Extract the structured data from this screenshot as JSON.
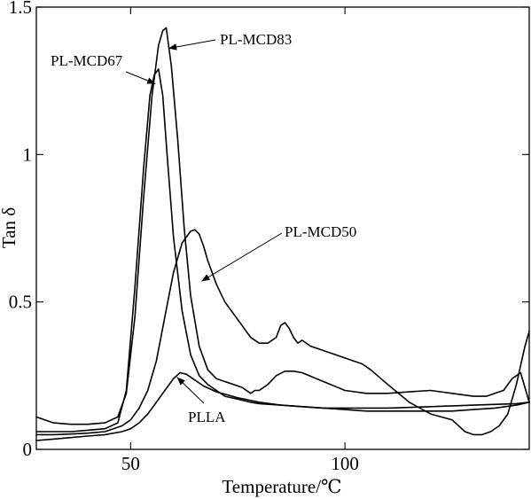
{
  "chart_data": {
    "type": "line",
    "title": "",
    "xlabel": "Temperature/℃",
    "ylabel": "Tan δ",
    "xlim": [
      28,
      143
    ],
    "ylim": [
      0,
      1.5
    ],
    "grid": false,
    "x_ticks": [
      {
        "value": 50,
        "label": "50"
      },
      {
        "value": 100,
        "label": "100"
      }
    ],
    "y_ticks": [
      {
        "value": 0,
        "label": "0"
      },
      {
        "value": 0.5,
        "label": "0.5"
      },
      {
        "value": 1,
        "label": "1"
      },
      {
        "value": 1.5,
        "label": "1.5"
      }
    ],
    "series": [
      {
        "name": "PL-MCD83",
        "x": [
          28,
          32,
          36,
          40,
          44,
          47,
          49,
          51,
          53,
          55,
          56.5,
          57.5,
          58.3,
          59.5,
          61,
          62.5,
          64,
          66,
          68,
          70,
          72,
          74,
          76,
          78,
          79,
          80,
          82,
          84,
          86,
          88,
          90,
          95,
          100,
          105,
          110,
          115,
          120,
          125,
          130,
          133,
          135,
          137,
          139,
          141,
          143
        ],
        "y": [
          0.11,
          0.09,
          0.085,
          0.085,
          0.09,
          0.11,
          0.19,
          0.45,
          0.85,
          1.2,
          1.37,
          1.42,
          1.43,
          1.3,
          1.05,
          0.75,
          0.52,
          0.35,
          0.27,
          0.24,
          0.23,
          0.22,
          0.21,
          0.19,
          0.2,
          0.2,
          0.22,
          0.25,
          0.265,
          0.265,
          0.26,
          0.23,
          0.2,
          0.19,
          0.19,
          0.195,
          0.2,
          0.19,
          0.18,
          0.18,
          0.19,
          0.2,
          0.24,
          0.26,
          0.16
        ]
      },
      {
        "name": "PL-MCD67",
        "x": [
          28,
          32,
          36,
          40,
          44,
          47,
          49,
          51,
          53,
          54.5,
          55.5,
          56.5,
          57.5,
          58.5,
          60,
          62,
          64,
          66,
          68,
          70,
          72,
          75,
          78,
          80,
          85,
          90,
          95,
          100,
          105,
          110,
          115,
          120,
          125,
          130,
          135,
          140,
          143
        ],
        "y": [
          0.06,
          0.06,
          0.06,
          0.065,
          0.07,
          0.09,
          0.2,
          0.55,
          0.95,
          1.2,
          1.27,
          1.29,
          1.2,
          1.0,
          0.72,
          0.47,
          0.32,
          0.25,
          0.22,
          0.2,
          0.18,
          0.17,
          0.16,
          0.155,
          0.15,
          0.145,
          0.14,
          0.135,
          0.13,
          0.13,
          0.13,
          0.13,
          0.13,
          0.135,
          0.14,
          0.15,
          0.16
        ]
      },
      {
        "name": "PL-MCD50",
        "x": [
          28,
          32,
          36,
          40,
          44,
          48,
          50,
          52,
          54,
          56,
          58,
          60,
          62,
          64,
          65,
          66,
          67,
          68,
          70,
          72,
          74,
          76,
          78,
          80,
          82,
          84,
          85,
          86,
          87,
          88,
          89,
          90,
          92,
          94,
          96,
          98,
          100,
          102,
          104,
          106,
          110,
          115,
          120,
          125,
          128,
          130,
          132,
          134,
          136,
          138,
          140,
          142,
          143
        ],
        "y": [
          0.05,
          0.05,
          0.052,
          0.055,
          0.06,
          0.08,
          0.1,
          0.14,
          0.2,
          0.3,
          0.45,
          0.6,
          0.7,
          0.74,
          0.745,
          0.73,
          0.69,
          0.64,
          0.56,
          0.5,
          0.46,
          0.42,
          0.38,
          0.36,
          0.36,
          0.38,
          0.42,
          0.43,
          0.41,
          0.38,
          0.36,
          0.37,
          0.35,
          0.34,
          0.33,
          0.32,
          0.31,
          0.3,
          0.29,
          0.27,
          0.22,
          0.16,
          0.12,
          0.1,
          0.06,
          0.05,
          0.05,
          0.06,
          0.08,
          0.12,
          0.22,
          0.35,
          0.4
        ]
      },
      {
        "name": "PLLA",
        "x": [
          28,
          32,
          36,
          40,
          44,
          48,
          50,
          52,
          54,
          56,
          58,
          60,
          61.5,
          63,
          65,
          67,
          70,
          75,
          80,
          85,
          90,
          95,
          100,
          110,
          120,
          130,
          140,
          143
        ],
        "y": [
          0.03,
          0.035,
          0.04,
          0.045,
          0.05,
          0.06,
          0.07,
          0.09,
          0.12,
          0.16,
          0.2,
          0.24,
          0.26,
          0.255,
          0.235,
          0.215,
          0.195,
          0.175,
          0.16,
          0.15,
          0.145,
          0.14,
          0.14,
          0.14,
          0.145,
          0.15,
          0.155,
          0.16
        ]
      }
    ],
    "annotations": [
      {
        "text": "PL-MCD83",
        "arrow_to": {
          "x": 58.8,
          "y": 1.36
        }
      },
      {
        "text": "PL-MCD67",
        "arrow_to": {
          "x": 55.8,
          "y": 1.24
        }
      },
      {
        "text": "PL-MCD50",
        "arrow_to": {
          "x": 66.5,
          "y": 0.57
        }
      },
      {
        "text": "PLLA",
        "arrow_to": {
          "x": 60.8,
          "y": 0.245
        }
      }
    ]
  }
}
